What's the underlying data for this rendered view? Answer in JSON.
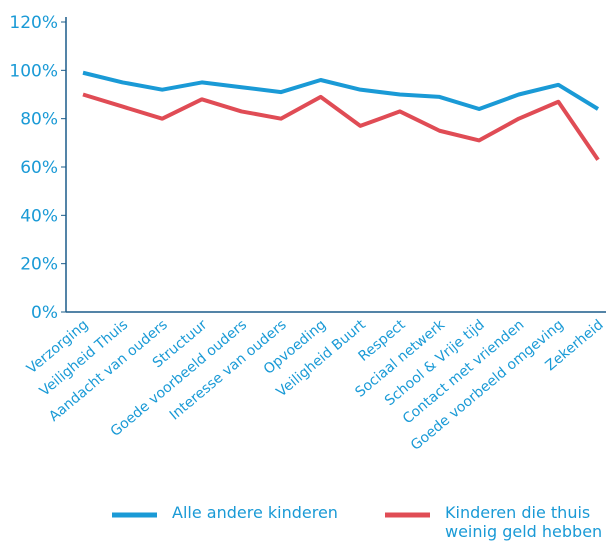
{
  "chart_data": {
    "type": "line",
    "categories": [
      "Verzorging",
      "Veiligheid Thuis",
      "Aandacht van ouders",
      "Structuur",
      "Goede voorbeeld ouders",
      "Interesse van ouders",
      "Opvoeding",
      "Veiligheid Buurt",
      "Respect",
      "Sociaal netwerk",
      "School & Vrije tijd",
      "Contact met vrienden",
      "Goede voorbeeld omgeving",
      "Zekerheid"
    ],
    "series": [
      {
        "name": "Alle andere kinderen",
        "color": "#1a9ad6",
        "values": [
          99,
          95,
          92,
          95,
          93,
          91,
          96,
          92,
          90,
          89,
          84,
          90,
          94,
          84
        ]
      },
      {
        "name": "Kinderen die thuis weinig geld hebben",
        "color": "#e04c55",
        "values": [
          90,
          85,
          80,
          88,
          83,
          80,
          89,
          77,
          83,
          75,
          71,
          80,
          87,
          63
        ]
      }
    ],
    "ylim": [
      0,
      120
    ],
    "yticks": [
      {
        "value": 0,
        "label": "0%"
      },
      {
        "value": 20,
        "label": "20%"
      },
      {
        "value": 40,
        "label": "40%"
      },
      {
        "value": 60,
        "label": "60%"
      },
      {
        "value": 80,
        "label": "80%"
      },
      {
        "value": 100,
        "label": "100%"
      },
      {
        "value": 120,
        "label": "120%"
      }
    ],
    "legend": "bottom"
  }
}
